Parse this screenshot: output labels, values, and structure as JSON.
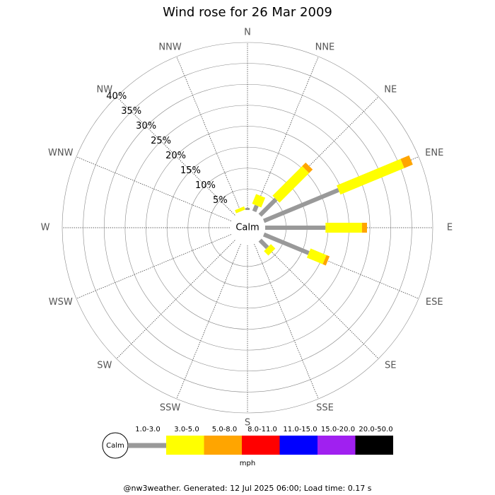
{
  "chart_data": {
    "type": "rose",
    "title": "Wind rose for 26 Mar 2009",
    "categories": [
      "N",
      "NNE",
      "NE",
      "ENE",
      "E",
      "ESE",
      "SE",
      "SSE",
      "S",
      "SSW",
      "SW",
      "WSW",
      "W",
      "WNW",
      "NW",
      "NNW"
    ],
    "calm_label": "Calm",
    "unit": "mph",
    "rlim": [
      0,
      40
    ],
    "rticks": [
      {
        "value": 5,
        "label": "5%"
      },
      {
        "value": 10,
        "label": "10%"
      },
      {
        "value": 15,
        "label": "15%"
      },
      {
        "value": 20,
        "label": "20%"
      },
      {
        "value": 25,
        "label": "25%"
      },
      {
        "value": 30,
        "label": "30%"
      },
      {
        "value": 35,
        "label": "35%"
      },
      {
        "value": 40,
        "label": "40%"
      }
    ],
    "series": [
      {
        "name": "1.0-3.0",
        "color": "#999999",
        "values": [
          0.5,
          1.5,
          5.4,
          19.3,
          14.4,
          11.6,
          2.5,
          0,
          0,
          0,
          0,
          0,
          0,
          0,
          0,
          0
        ]
      },
      {
        "name": "3.0-5.0",
        "color": "#ffff00",
        "values": [
          0,
          2.5,
          10,
          16.5,
          8.7,
          4.1,
          1.5,
          0,
          0,
          0,
          0,
          0,
          0,
          0,
          0,
          0.8
        ]
      },
      {
        "name": "5.0-8.0",
        "color": "#ffa500",
        "values": [
          0,
          0,
          1.2,
          2.2,
          1.2,
          0.8,
          0,
          0,
          0,
          0,
          0,
          0,
          0,
          0,
          0,
          0
        ]
      },
      {
        "name": "8.0-11.0",
        "color": "#ff0000",
        "values": [
          0,
          0,
          0,
          0,
          0,
          0,
          0,
          0,
          0,
          0,
          0,
          0,
          0,
          0,
          0,
          0
        ]
      },
      {
        "name": "11.0-15.0",
        "color": "#0000ff",
        "values": [
          0,
          0,
          0,
          0,
          0,
          0,
          0,
          0,
          0,
          0,
          0,
          0,
          0,
          0,
          0,
          0
        ]
      },
      {
        "name": "15.0-20.0",
        "color": "#a020f0",
        "values": [
          0,
          0,
          0,
          0,
          0,
          0,
          0,
          0,
          0,
          0,
          0,
          0,
          0,
          0,
          0,
          0
        ]
      },
      {
        "name": "20.0-50.0",
        "color": "#000000",
        "values": [
          0,
          0,
          0,
          0,
          0,
          0,
          0,
          0,
          0,
          0,
          0,
          0,
          0,
          0,
          0,
          0
        ]
      }
    ],
    "footer": "@nw3weather. Generated: 12 Jul 2025 06:00; Load time: 0.17 s"
  }
}
